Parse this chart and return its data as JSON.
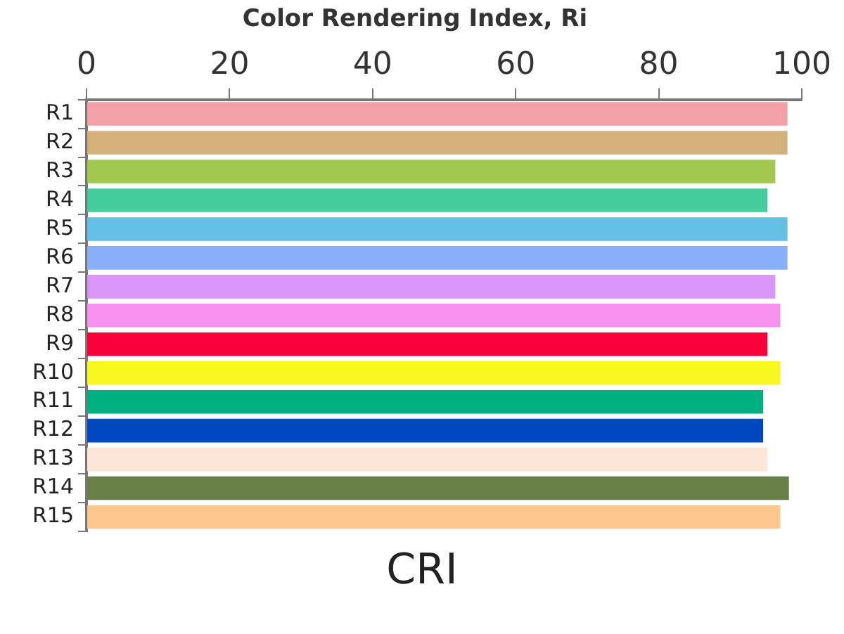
{
  "chart_data": {
    "type": "bar",
    "orientation": "horizontal",
    "title": "Color Rendering Index, Ri",
    "categories": [
      "R1",
      "R2",
      "R3",
      "R4",
      "R5",
      "R6",
      "R7",
      "R8",
      "R9",
      "R10",
      "R11",
      "R12",
      "R13",
      "R14",
      "R15"
    ],
    "values": [
      98,
      98,
      96.3,
      95.2,
      98,
      98,
      96.3,
      97,
      95.2,
      97,
      94.6,
      94.6,
      95.2,
      98.2,
      97
    ],
    "colors": [
      "#f4a0a8",
      "#d4b07a",
      "#a2c850",
      "#45cc9c",
      "#64c0e4",
      "#88b0f8",
      "#d896f8",
      "#f890f0",
      "#f80038",
      "#f8f820",
      "#00b080",
      "#0048c0",
      "#fce6d8",
      "#688048",
      "#fcc890"
    ],
    "xlim": [
      0,
      100
    ],
    "xticks": [
      0,
      20,
      40,
      60,
      80,
      100
    ],
    "grid": false,
    "legend": false,
    "annotations": [
      "CRI"
    ]
  }
}
